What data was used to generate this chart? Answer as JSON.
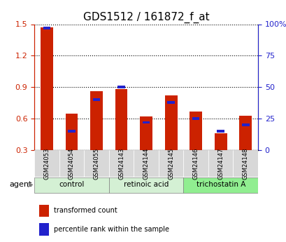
{
  "title": "GDS1512 / 161872_f_at",
  "categories": [
    "GSM24053",
    "GSM24054",
    "GSM24055",
    "GSM24143",
    "GSM24144",
    "GSM24145",
    "GSM24146",
    "GSM24147",
    "GSM24148"
  ],
  "red_values": [
    1.47,
    0.65,
    0.86,
    0.88,
    0.62,
    0.82,
    0.67,
    0.46,
    0.63
  ],
  "blue_values": [
    0.97,
    0.45,
    0.72,
    0.9,
    0.57,
    0.74,
    0.62,
    0.46,
    0.58
  ],
  "blue_percentiles": [
    97,
    15,
    40,
    50,
    22,
    38,
    25,
    15,
    20
  ],
  "red_color": "#cc2200",
  "blue_color": "#2222cc",
  "ylim_left": [
    0.3,
    1.5
  ],
  "ylim_right": [
    0,
    100
  ],
  "yticks_left": [
    0.3,
    0.6,
    0.9,
    1.2,
    1.5
  ],
  "yticks_right": [
    0,
    25,
    50,
    75,
    100
  ],
  "groups": [
    {
      "label": "control",
      "indices": [
        0,
        1,
        2
      ],
      "color": "#e8f5e8"
    },
    {
      "label": "retinoic acid",
      "indices": [
        3,
        4,
        5
      ],
      "color": "#e8f5e8"
    },
    {
      "label": "trichostatin A",
      "indices": [
        6,
        7,
        8
      ],
      "color": "#90ee90"
    }
  ],
  "agent_label": "agent",
  "legend_red": "transformed count",
  "legend_blue": "percentile rank within the sample",
  "background_color": "#ffffff",
  "plot_bg_color": "#ffffff",
  "title_fontsize": 11,
  "axis_label_fontsize": 8,
  "tick_fontsize": 8,
  "bar_width": 0.5
}
